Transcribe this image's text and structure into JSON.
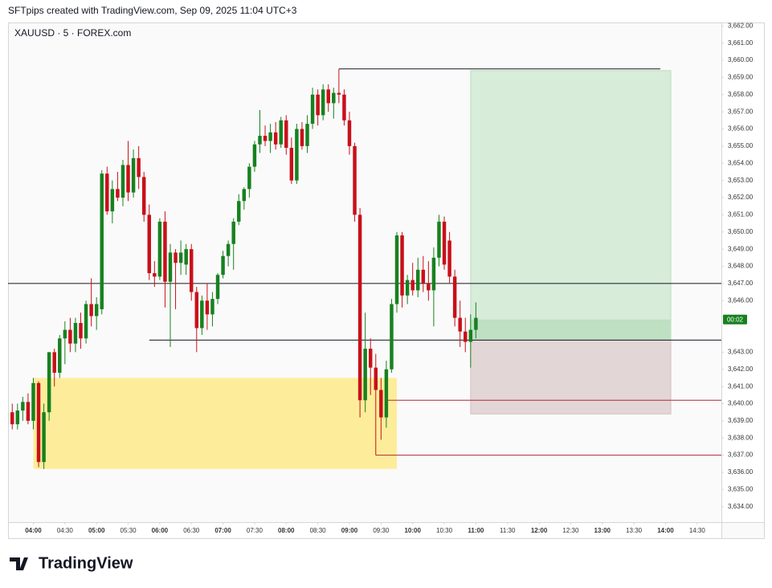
{
  "header": {
    "text": "SFTpips created with TradingView.com, Sep 09, 2025 11:04 UTC+3"
  },
  "footer": {
    "brand": "TradingView"
  },
  "chart_data": {
    "type": "candlestick",
    "title": "XAUUSD · 5 · FOREX.com",
    "up_color": "#17811f",
    "down_color": "#c8101a",
    "x": [
      "03:40",
      "03:45",
      "03:50",
      "03:55",
      "04:00",
      "04:05",
      "04:10",
      "04:15",
      "04:20",
      "04:25",
      "04:30",
      "04:35",
      "04:40",
      "04:45",
      "04:50",
      "04:55",
      "05:00",
      "05:05",
      "05:10",
      "05:15",
      "05:20",
      "05:25",
      "05:30",
      "05:35",
      "05:40",
      "05:45",
      "05:50",
      "05:55",
      "06:00",
      "06:05",
      "06:10",
      "06:15",
      "06:20",
      "06:25",
      "06:30",
      "06:35",
      "06:40",
      "06:45",
      "06:50",
      "06:55",
      "07:00",
      "07:05",
      "07:10",
      "07:15",
      "07:20",
      "07:25",
      "07:30",
      "07:35",
      "07:40",
      "07:45",
      "07:50",
      "07:55",
      "08:00",
      "08:05",
      "08:10",
      "08:15",
      "08:20",
      "08:25",
      "08:30",
      "08:35",
      "08:40",
      "08:45",
      "08:50",
      "08:55",
      "09:00",
      "09:05",
      "09:10",
      "09:15",
      "09:20",
      "09:25",
      "09:30",
      "09:35",
      "09:40",
      "09:45",
      "09:50",
      "09:55",
      "10:00",
      "10:05",
      "10:10",
      "10:15",
      "10:20",
      "10:25",
      "10:30",
      "10:35",
      "10:40",
      "10:45",
      "10:50",
      "10:55",
      "11:00"
    ],
    "open": [
      3639.5,
      3638.8,
      3639.6,
      3640.1,
      3639,
      3641.2,
      3636.6,
      3639.5,
      3643,
      3641.8,
      3643.8,
      3644.3,
      3643.5,
      3644.7,
      3643.8,
      3645.8,
      3645.1,
      3645.5,
      3653.4,
      3651.2,
      3652.5,
      3652,
      3653.9,
      3652.3,
      3654.3,
      3653.2,
      3651,
      3647.6,
      3647.4,
      3650.6,
      3647.1,
      3648.8,
      3648.2,
      3648.1,
      3649,
      3646.5,
      3644.4,
      3646,
      3645.2,
      3646.1,
      3647.5,
      3648.6,
      3649.3,
      3650.6,
      3651.8,
      3652.5,
      3653.8,
      3655.1,
      3655.6,
      3655.3,
      3655.8,
      3655.1,
      3656.5,
      3654.9,
      3653,
      3656,
      3655,
      3656.3,
      3658,
      3656.8,
      3658.3,
      3657.5,
      3658.1,
      3658,
      3656.5,
      3655,
      3651,
      3640.2,
      3643.2,
      3642.1,
      3640.8,
      3639.2,
      3642,
      3645.8,
      3649.8,
      3646.3,
      3647.2,
      3646.6,
      3647.8,
      3647,
      3646.6,
      3648.5,
      3650.6,
      3649.5,
      3647.4,
      3645,
      3644.2,
      3643.6,
      3644.3
    ],
    "high": [
      3640,
      3640,
      3640.4,
      3640.6,
      3641.5,
      3641.3,
      3640,
      3643,
      3643.2,
      3644,
      3644.8,
      3645,
      3645,
      3645.3,
      3646,
      3647.3,
      3646.2,
      3653.6,
      3653.8,
      3653,
      3653.5,
      3654.2,
      3655.3,
      3654.8,
      3655,
      3653.5,
      3651.6,
      3648.3,
      3650.8,
      3651.2,
      3649.3,
      3649,
      3649.5,
      3649.3,
      3649.3,
      3646.8,
      3646.3,
      3647,
      3646.5,
      3647.6,
      3648.9,
      3649.5,
      3650.8,
      3652.2,
      3652.6,
      3654,
      3655.3,
      3657.1,
      3656.2,
      3656.3,
      3656.4,
      3656.7,
      3656.8,
      3655.5,
      3656.3,
      3656.4,
      3656.8,
      3658.4,
      3658.3,
      3658.6,
      3658.6,
      3658.4,
      3659.5,
      3658.3,
      3657,
      3655.2,
      3651.4,
      3645.3,
      3643.8,
      3642.9,
      3641.5,
      3642.5,
      3646.1,
      3650,
      3650,
      3647.5,
      3648.2,
      3648.5,
      3648.6,
      3648.3,
      3649.1,
      3651,
      3650.9,
      3650,
      3647.8,
      3646,
      3645,
      3645.2,
      3645.9
    ],
    "low": [
      3638.5,
      3638.5,
      3639,
      3638.8,
      3638.5,
      3636.3,
      3636.2,
      3639,
      3641,
      3641.5,
      3642.3,
      3643,
      3643,
      3643.2,
      3643.5,
      3644.5,
      3644.3,
      3645.2,
      3651,
      3650.5,
      3651.8,
      3651.5,
      3651.8,
      3652,
      3652.5,
      3650.6,
      3647.2,
      3646.8,
      3647.2,
      3645.6,
      3643.3,
      3645.5,
      3647.5,
      3647.5,
      3646,
      3643,
      3644,
      3644.3,
      3644.5,
      3645.8,
      3647.3,
      3648,
      3647.8,
      3650.4,
      3651.3,
      3652,
      3653.5,
      3654.6,
      3655,
      3654.6,
      3654.8,
      3654.9,
      3654.5,
      3652.8,
      3652.8,
      3654.8,
      3654.6,
      3656,
      3656.2,
      3656.5,
      3657,
      3656.6,
      3657.5,
      3656.2,
      3654.5,
      3650.6,
      3639.2,
      3639.5,
      3640.5,
      3637,
      3637.9,
      3638.6,
      3641.8,
      3645.3,
      3645.6,
      3645.8,
      3646.3,
      3646.2,
      3646.5,
      3646,
      3644.5,
      3648,
      3647.8,
      3647,
      3644.5,
      3643.3,
      3643,
      3642.1,
      3643.8
    ],
    "close": [
      3638.8,
      3639.6,
      3640.1,
      3639,
      3641.2,
      3636.6,
      3639.5,
      3643,
      3641.8,
      3643.8,
      3644.3,
      3643.5,
      3644.7,
      3643.8,
      3645.8,
      3645.1,
      3645.8,
      3653.4,
      3651.2,
      3652.5,
      3652,
      3653.9,
      3652.3,
      3654.3,
      3653.2,
      3651,
      3647.6,
      3647.4,
      3650.6,
      3647.1,
      3648.8,
      3648.2,
      3648.8,
      3649,
      3646.5,
      3644.4,
      3646,
      3645.2,
      3646.1,
      3647.5,
      3648.6,
      3649.3,
      3650.6,
      3651.8,
      3652.5,
      3653.8,
      3655.1,
      3655.6,
      3655.3,
      3655.8,
      3655.1,
      3656.5,
      3654.9,
      3653,
      3656,
      3655,
      3656.3,
      3658,
      3656.8,
      3658.3,
      3657.5,
      3658.1,
      3658,
      3656.5,
      3655,
      3651,
      3640.2,
      3643.2,
      3642.1,
      3640.8,
      3639.2,
      3642,
      3645.8,
      3649.8,
      3646.3,
      3647.2,
      3646.6,
      3647.8,
      3647,
      3646.6,
      3648.5,
      3650.6,
      3648.1,
      3647.4,
      3645,
      3644.2,
      3643.6,
      3644.3,
      3645
    ],
    "xlim": [
      "03:36",
      "14:53"
    ],
    "xticks": [
      "04:00",
      "04:30",
      "05:00",
      "05:30",
      "06:00",
      "06:30",
      "07:00",
      "07:30",
      "08:00",
      "08:30",
      "09:00",
      "09:30",
      "10:00",
      "10:30",
      "11:00",
      "11:30",
      "12:00",
      "12:30",
      "13:00",
      "13:30",
      "14:00",
      "14:30"
    ],
    "ylim": [
      3633.1,
      3662.2
    ],
    "yticks": [
      {
        "value": 3662,
        "label": "3,662.00"
      },
      {
        "value": 3661,
        "label": "3,661.00"
      },
      {
        "value": 3660,
        "label": "3,660.00"
      },
      {
        "value": 3659,
        "label": "3,659.00"
      },
      {
        "value": 3658,
        "label": "3,658.00"
      },
      {
        "value": 3657,
        "label": "3,657.00"
      },
      {
        "value": 3656,
        "label": "3,656.00"
      },
      {
        "value": 3655,
        "label": "3,655.00"
      },
      {
        "value": 3654,
        "label": "3,654.00"
      },
      {
        "value": 3653,
        "label": "3,653.00"
      },
      {
        "value": 3652,
        "label": "3,652.00"
      },
      {
        "value": 3651,
        "label": "3,651.00"
      },
      {
        "value": 3650,
        "label": "3,650.00"
      },
      {
        "value": 3649,
        "label": "3,649.00"
      },
      {
        "value": 3648,
        "label": "3,648.00"
      },
      {
        "value": 3647,
        "label": "3,647.00"
      },
      {
        "value": 3646,
        "label": "3,646.00"
      },
      {
        "value": 3643,
        "label": "3,643.00"
      },
      {
        "value": 3642,
        "label": "3,642.00"
      },
      {
        "value": 3641,
        "label": "3,641.00"
      },
      {
        "value": 3640,
        "label": "3,640.00"
      },
      {
        "value": 3639,
        "label": "3,639.00"
      },
      {
        "value": 3638,
        "label": "3,638.00"
      },
      {
        "value": 3637,
        "label": "3,637.00"
      },
      {
        "value": 3636,
        "label": "3,636.00"
      },
      {
        "value": 3635,
        "label": "3,635.00"
      },
      {
        "value": 3634,
        "label": "3,634.00"
      }
    ],
    "zone": {
      "top": 3641.5,
      "bottom": 3636.2,
      "start": "04:00",
      "end": "09:45",
      "color": "#fdeb8f"
    },
    "lines": [
      {
        "price": 3647.0,
        "color": "#131722"
      },
      {
        "price": 3643.7,
        "start": "05:50",
        "color": "#131722"
      },
      {
        "price": 3659.5,
        "start": "08:50",
        "end": "13:55",
        "color": "#131722"
      },
      {
        "price": 3640.2,
        "start": "09:35",
        "color": "#b22833"
      },
      {
        "price": 3637.0,
        "start": "09:25",
        "color": "#b22833"
      }
    ],
    "position": {
      "target": 3659.4,
      "entry": 3643.7,
      "stop": 3639.4,
      "current": 3644.9,
      "start": "10:55",
      "end": "14:05"
    },
    "countdown": "00:02"
  }
}
